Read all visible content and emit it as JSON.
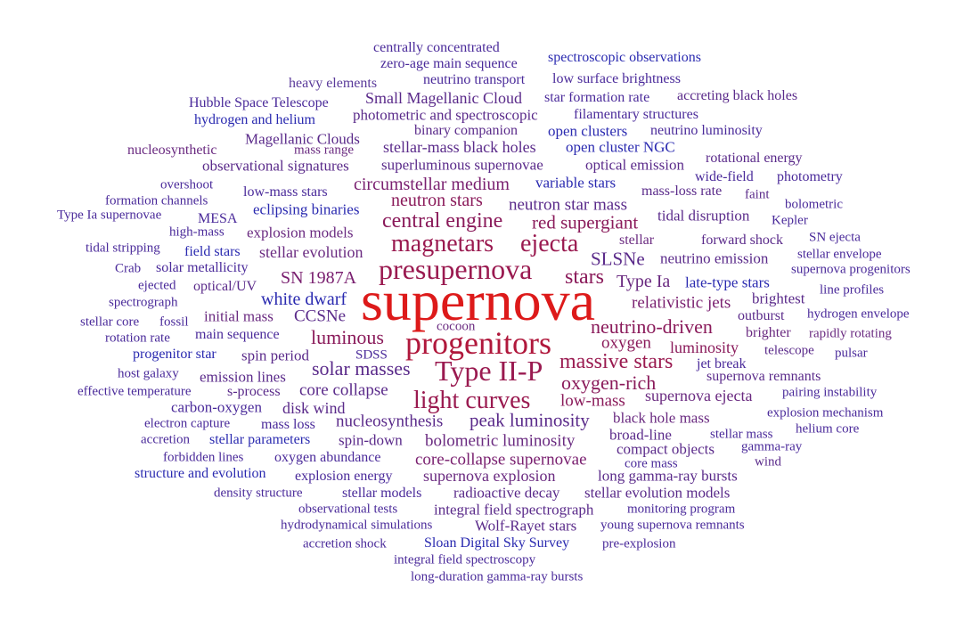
{
  "words": [
    {
      "text": "centrally concentrated",
      "color": "#4a2a9a",
      "weight": 16
    },
    {
      "text": "zero-age main sequence",
      "color": "#4a2a9a",
      "weight": 16
    },
    {
      "text": "spectroscopic observations",
      "color": "#2a2ab0",
      "weight": 16
    },
    {
      "text": "heavy elements",
      "color": "#5a3a9a",
      "weight": 16
    },
    {
      "text": "neutrino transport",
      "color": "#4a2a9a",
      "weight": 16
    },
    {
      "text": "low surface brightness",
      "color": "#4a2a9a",
      "weight": 16
    },
    {
      "text": "Hubble Space Telescope",
      "color": "#4a2a9a",
      "weight": 16
    },
    {
      "text": "Small Magellanic Cloud",
      "color": "#5a2a8a",
      "weight": 18
    },
    {
      "text": "star formation rate",
      "color": "#4a2a9a",
      "weight": 16
    },
    {
      "text": "accreting black holes",
      "color": "#5a2a8a",
      "weight": 16
    },
    {
      "text": "hydrogen and helium",
      "color": "#2a2ab0",
      "weight": 16
    },
    {
      "text": "photometric and spectroscopic",
      "color": "#5a2a8a",
      "weight": 17
    },
    {
      "text": "filamentary structures",
      "color": "#4a2a9a",
      "weight": 16
    },
    {
      "text": "binary companion",
      "color": "#5a2a8a",
      "weight": 16
    },
    {
      "text": "open clusters",
      "color": "#2a2ab0",
      "weight": 17
    },
    {
      "text": "neutrino luminosity",
      "color": "#4a2a9a",
      "weight": 16
    },
    {
      "text": "Magellanic Clouds",
      "color": "#5a2a8a",
      "weight": 17
    },
    {
      "text": "nucleosynthetic",
      "color": "#6a2a80",
      "weight": 16
    },
    {
      "text": "mass range",
      "color": "#6a2a80",
      "weight": 15
    },
    {
      "text": "stellar-mass black holes",
      "color": "#5a2a8a",
      "weight": 18
    },
    {
      "text": "open cluster NGC",
      "color": "#2a2ab0",
      "weight": 17
    },
    {
      "text": "observational signatures",
      "color": "#5a2a8a",
      "weight": 17
    },
    {
      "text": "superluminous supernovae",
      "color": "#5a2a8a",
      "weight": 17
    },
    {
      "text": "optical emission",
      "color": "#5a2a8a",
      "weight": 17
    },
    {
      "text": "rotational energy",
      "color": "#5a2a8a",
      "weight": 16
    },
    {
      "text": "wide-field",
      "color": "#4a2a9a",
      "weight": 16
    },
    {
      "text": "photometry",
      "color": "#4a2a9a",
      "weight": 16
    },
    {
      "text": "overshoot",
      "color": "#4a2a9a",
      "weight": 15
    },
    {
      "text": "circumstellar medium",
      "color": "#7a2070",
      "weight": 20
    },
    {
      "text": "variable stars",
      "color": "#2a2ab0",
      "weight": 17
    },
    {
      "text": "low-mass stars",
      "color": "#4a2a9a",
      "weight": 16
    },
    {
      "text": "mass-loss rate",
      "color": "#5a2a8a",
      "weight": 16
    },
    {
      "text": "faint",
      "color": "#5a2a8a",
      "weight": 15
    },
    {
      "text": "formation channels",
      "color": "#4a2a9a",
      "weight": 15
    },
    {
      "text": "neutron stars",
      "color": "#8a1a5a",
      "weight": 20
    },
    {
      "text": "neutron star mass",
      "color": "#5a2a8a",
      "weight": 19
    },
    {
      "text": "bolometric",
      "color": "#4a2a9a",
      "weight": 15
    },
    {
      "text": "Type Ia supernovae",
      "color": "#4a2a9a",
      "weight": 15
    },
    {
      "text": "eclipsing binaries",
      "color": "#2a2ab0",
      "weight": 17
    },
    {
      "text": "MESA",
      "color": "#4a2a9a",
      "weight": 16
    },
    {
      "text": "central engine",
      "color": "#8a1a5a",
      "weight": 24
    },
    {
      "text": "tidal disruption",
      "color": "#5a2a8a",
      "weight": 17
    },
    {
      "text": "Kepler",
      "color": "#4a2a9a",
      "weight": 15
    },
    {
      "text": "red supergiant",
      "color": "#8a1a5a",
      "weight": 21
    },
    {
      "text": "high-mass",
      "color": "#4a2a9a",
      "weight": 15
    },
    {
      "text": "explosion models",
      "color": "#6a2a80",
      "weight": 17
    },
    {
      "text": "SN ejecta",
      "color": "#4a2a9a",
      "weight": 15
    },
    {
      "text": "magnetars",
      "color": "#9a1a50",
      "weight": 28
    },
    {
      "text": "ejecta",
      "color": "#9a1a50",
      "weight": 28
    },
    {
      "text": "stellar",
      "color": "#6a2a80",
      "weight": 16
    },
    {
      "text": "forward shock",
      "color": "#5a2a8a",
      "weight": 16
    },
    {
      "text": "tidal stripping",
      "color": "#4a2a9a",
      "weight": 15
    },
    {
      "text": "field stars",
      "color": "#2a2ab0",
      "weight": 16
    },
    {
      "text": "stellar evolution",
      "color": "#6a2a80",
      "weight": 18
    },
    {
      "text": "stellar envelope",
      "color": "#4a2a9a",
      "weight": 15
    },
    {
      "text": "SLSNe",
      "color": "#5a2a8a",
      "weight": 21
    },
    {
      "text": "neutrino emission",
      "color": "#5a2a8a",
      "weight": 17
    },
    {
      "text": "Crab",
      "color": "#4a2a9a",
      "weight": 15
    },
    {
      "text": "solar metallicity",
      "color": "#4a2a9a",
      "weight": 16
    },
    {
      "text": "presupernova",
      "color": "#9a1a50",
      "weight": 32
    },
    {
      "text": "supernova progenitors",
      "color": "#4a2a9a",
      "weight": 15
    },
    {
      "text": "ejected",
      "color": "#4a2a9a",
      "weight": 15
    },
    {
      "text": "SN 1987A",
      "color": "#7a2070",
      "weight": 20
    },
    {
      "text": "stars",
      "color": "#8a1a5a",
      "weight": 24
    },
    {
      "text": "Type Ia",
      "color": "#6a2a80",
      "weight": 20
    },
    {
      "text": "late-type stars",
      "color": "#2a2ab0",
      "weight": 17
    },
    {
      "text": "optical/UV",
      "color": "#5a2a8a",
      "weight": 16
    },
    {
      "text": "line profiles",
      "color": "#4a2a9a",
      "weight": 15
    },
    {
      "text": "spectrograph",
      "color": "#4a2a9a",
      "weight": 15
    },
    {
      "text": "supernova",
      "color": "#dd1a1a",
      "weight": 64
    },
    {
      "text": "white dwarf",
      "color": "#2a2ab0",
      "weight": 20
    },
    {
      "text": "brightest",
      "color": "#5a2a8a",
      "weight": 17
    },
    {
      "text": "relativistic jets",
      "color": "#7a2070",
      "weight": 19
    },
    {
      "text": "hydrogen envelope",
      "color": "#4a2a9a",
      "weight": 15
    },
    {
      "text": "stellar core",
      "color": "#4a2a9a",
      "weight": 15
    },
    {
      "text": "fossil",
      "color": "#4a2a9a",
      "weight": 15
    },
    {
      "text": "initial mass",
      "color": "#6a2a80",
      "weight": 17
    },
    {
      "text": "CCSNe",
      "color": "#5a2a8a",
      "weight": 19
    },
    {
      "text": "outburst",
      "color": "#5a2a8a",
      "weight": 16
    },
    {
      "text": "cocoon",
      "color": "#6a2a80",
      "weight": 15
    },
    {
      "text": "neutrino-driven",
      "color": "#8a1a5a",
      "weight": 22
    },
    {
      "text": "brighter",
      "color": "#6a2a80",
      "weight": 16
    },
    {
      "text": "rapidly rotating",
      "color": "#6a2a80",
      "weight": 15
    },
    {
      "text": "rotation rate",
      "color": "#4a2a9a",
      "weight": 15
    },
    {
      "text": "main sequence",
      "color": "#4a2a9a",
      "weight": 16
    },
    {
      "text": "luminous",
      "color": "#8a1a5a",
      "weight": 22
    },
    {
      "text": "progenitors",
      "color": "#b0183c",
      "weight": 36
    },
    {
      "text": "oxygen",
      "color": "#8a1a5a",
      "weight": 19
    },
    {
      "text": "luminosity",
      "color": "#8a1a5a",
      "weight": 18
    },
    {
      "text": "telescope",
      "color": "#5a2a8a",
      "weight": 15
    },
    {
      "text": "progenitor star",
      "color": "#2a2ab0",
      "weight": 16
    },
    {
      "text": "spin period",
      "color": "#5a2a8a",
      "weight": 17
    },
    {
      "text": "SDSS",
      "color": "#4a2a9a",
      "weight": 15
    },
    {
      "text": "pulsar",
      "color": "#4a2a9a",
      "weight": 15
    },
    {
      "text": "solar masses",
      "color": "#5a2a8a",
      "weight": 22
    },
    {
      "text": "Type II-P",
      "color": "#9a1a50",
      "weight": 32
    },
    {
      "text": "massive stars",
      "color": "#9a1a50",
      "weight": 24
    },
    {
      "text": "jet break",
      "color": "#4a2a9a",
      "weight": 16
    },
    {
      "text": "host galaxy",
      "color": "#4a2a9a",
      "weight": 15
    },
    {
      "text": "emission lines",
      "color": "#5a2a8a",
      "weight": 17
    },
    {
      "text": "supernova remnants",
      "color": "#5a2a8a",
      "weight": 16
    },
    {
      "text": "oxygen-rich",
      "color": "#8a1a5a",
      "weight": 22
    },
    {
      "text": "effective temperature",
      "color": "#4a2a9a",
      "weight": 15
    },
    {
      "text": "s-process",
      "color": "#5a2a8a",
      "weight": 16
    },
    {
      "text": "core collapse",
      "color": "#5a2a8a",
      "weight": 19
    },
    {
      "text": "pairing instability",
      "color": "#4a2a9a",
      "weight": 15
    },
    {
      "text": "light curves",
      "color": "#9a1a50",
      "weight": 28
    },
    {
      "text": "low-mass",
      "color": "#8a1a5a",
      "weight": 19
    },
    {
      "text": "supernova ejecta",
      "color": "#6a2a80",
      "weight": 18
    },
    {
      "text": "carbon-oxygen",
      "color": "#4a2a9a",
      "weight": 17
    },
    {
      "text": "disk wind",
      "color": "#5a2a8a",
      "weight": 18
    },
    {
      "text": "explosion mechanism",
      "color": "#4a2a9a",
      "weight": 15
    },
    {
      "text": "black hole mass",
      "color": "#6a2a80",
      "weight": 17
    },
    {
      "text": "electron capture",
      "color": "#4a2a9a",
      "weight": 15
    },
    {
      "text": "mass loss",
      "color": "#4a2a9a",
      "weight": 16
    },
    {
      "text": "nucleosynthesis",
      "color": "#5a2a8a",
      "weight": 19
    },
    {
      "text": "peak luminosity",
      "color": "#5a2a8a",
      "weight": 21
    },
    {
      "text": "helium core",
      "color": "#4a2a9a",
      "weight": 15
    },
    {
      "text": "accretion",
      "color": "#4a2a9a",
      "weight": 15
    },
    {
      "text": "broad-line",
      "color": "#5a2a8a",
      "weight": 17
    },
    {
      "text": "stellar mass",
      "color": "#4a2a9a",
      "weight": 15
    },
    {
      "text": "stellar parameters",
      "color": "#2a2ab0",
      "weight": 16
    },
    {
      "text": "spin-down",
      "color": "#5a2a8a",
      "weight": 17
    },
    {
      "text": "bolometric luminosity",
      "color": "#6a2a80",
      "weight": 19
    },
    {
      "text": "gamma-ray",
      "color": "#4a2a9a",
      "weight": 15
    },
    {
      "text": "compact objects",
      "color": "#5a2a8a",
      "weight": 17
    },
    {
      "text": "forbidden lines",
      "color": "#4a2a9a",
      "weight": 15
    },
    {
      "text": "oxygen abundance",
      "color": "#4a2a9a",
      "weight": 16
    },
    {
      "text": "core-collapse supernovae",
      "color": "#7a2070",
      "weight": 19
    },
    {
      "text": "wind",
      "color": "#5a2a8a",
      "weight": 15
    },
    {
      "text": "core mass",
      "color": "#4a2a9a",
      "weight": 15
    },
    {
      "text": "structure and evolution",
      "color": "#2a2ab0",
      "weight": 16
    },
    {
      "text": "explosion energy",
      "color": "#4a2a9a",
      "weight": 16
    },
    {
      "text": "supernova explosion",
      "color": "#6a2a80",
      "weight": 18
    },
    {
      "text": "long gamma-ray bursts",
      "color": "#5a2a8a",
      "weight": 17
    },
    {
      "text": "density structure",
      "color": "#4a2a9a",
      "weight": 15
    },
    {
      "text": "stellar models",
      "color": "#4a2a9a",
      "weight": 16
    },
    {
      "text": "radioactive decay",
      "color": "#5a2a8a",
      "weight": 17
    },
    {
      "text": "stellar evolution models",
      "color": "#5a2a8a",
      "weight": 17
    },
    {
      "text": "observational tests",
      "color": "#4a2a9a",
      "weight": 15
    },
    {
      "text": "integral field spectrograph",
      "color": "#5a2a8a",
      "weight": 17
    },
    {
      "text": "monitoring program",
      "color": "#4a2a9a",
      "weight": 15
    },
    {
      "text": "hydrodynamical simulations",
      "color": "#4a2a9a",
      "weight": 15
    },
    {
      "text": "Wolf-Rayet stars",
      "color": "#5a2a8a",
      "weight": 17
    },
    {
      "text": "young supernova remnants",
      "color": "#4a2a9a",
      "weight": 15
    },
    {
      "text": "accretion shock",
      "color": "#4a2a9a",
      "weight": 15
    },
    {
      "text": "Sloan Digital Sky Survey",
      "color": "#2a2ab0",
      "weight": 16
    },
    {
      "text": "pre-explosion",
      "color": "#4a2a9a",
      "weight": 15
    },
    {
      "text": "integral field spectroscopy",
      "color": "#4a2a9a",
      "weight": 15
    },
    {
      "text": "long-duration gamma-ray bursts",
      "color": "#4a2a9a",
      "weight": 15
    }
  ]
}
